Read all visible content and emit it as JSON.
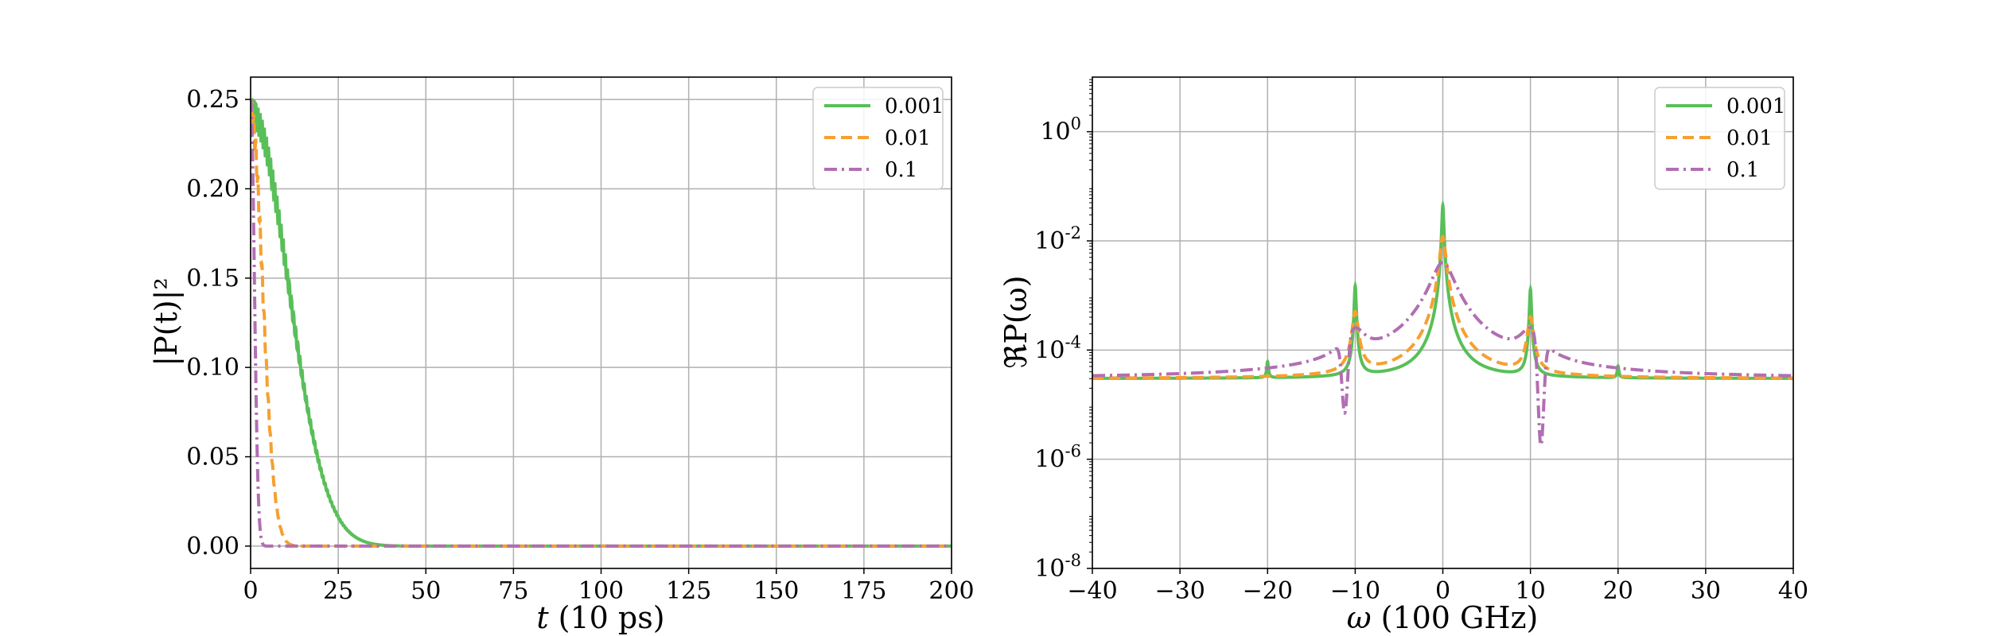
{
  "colors": {
    "s0": "#59bf59",
    "s1": "#f5a030",
    "s2": "#b26eb2"
  },
  "chart_data": [
    {
      "type": "line",
      "xlabel_var": "t",
      "xlabel_unit": "(10 ps)",
      "ylabel": "|P(t)|²",
      "xlim": [
        0,
        200
      ],
      "ylim": [
        -0.0125,
        0.2625
      ],
      "xticks": [
        0,
        25,
        50,
        75,
        100,
        125,
        150,
        175,
        200
      ],
      "xtick_labels": [
        "0",
        "25",
        "50",
        "75",
        "100",
        "125",
        "150",
        "175",
        "200"
      ],
      "yticks": [
        0.0,
        0.05,
        0.1,
        0.15,
        0.2,
        0.25
      ],
      "ytick_labels": [
        "0.00",
        "0.05",
        "0.10",
        "0.15",
        "0.20",
        "0.25"
      ],
      "grid": true,
      "legend": "top-right",
      "series": [
        {
          "name": "0.001",
          "style": "solid",
          "color_key": "s0",
          "decay_scale": 15.2,
          "osc_amp": 0.02
        },
        {
          "name": "0.01",
          "style": "dashed",
          "color_key": "s1",
          "decay_scale": 4.8,
          "osc_amp": 0.02
        },
        {
          "name": "0.1",
          "style": "dashdot",
          "color_key": "s2",
          "decay_scale": 1.5,
          "osc_amp": 0.0
        }
      ]
    },
    {
      "type": "line",
      "xlabel_var": "ω",
      "xlabel_unit": "(100 GHz)",
      "ylabel": "ℜP(ω)",
      "yscale": "log",
      "xlim": [
        -40,
        40
      ],
      "ylim_log10": [
        -8,
        1
      ],
      "xticks": [
        -40,
        -30,
        -20,
        -10,
        0,
        10,
        20,
        30,
        40
      ],
      "xtick_labels": [
        "−40",
        "−30",
        "−20",
        "−10",
        "0",
        "10",
        "20",
        "30",
        "40"
      ],
      "yticks_exp": [
        0,
        -2,
        -4,
        -6,
        -8
      ],
      "ytick_base": "10",
      "ytick_exponents": [
        "0",
        "-2",
        "-4",
        "-6",
        "-8"
      ],
      "grid": true,
      "legend": "top-right",
      "baseline": 3e-05,
      "series": [
        {
          "name": "0.001",
          "style": "solid",
          "color_key": "s0",
          "peaks": [
            {
              "x": 0,
              "value": 0.045,
              "width": 0.1
            },
            {
              "x": -10,
              "value": 0.0015,
              "width": 0.1
            },
            {
              "x": 10,
              "value": 0.0013,
              "width": 0.1
            },
            {
              "x": -20,
              "value": 6e-05,
              "width": 0.1
            },
            {
              "x": 20,
              "value": 5e-05,
              "width": 0.1
            }
          ]
        },
        {
          "name": "0.01",
          "style": "dashed",
          "color_key": "s1",
          "peaks": [
            {
              "x": 0,
              "value": 0.012,
              "width": 0.3
            },
            {
              "x": -10,
              "value": 0.0005,
              "width": 0.3
            },
            {
              "x": 10,
              "value": 0.0004,
              "width": 0.3
            }
          ]
        },
        {
          "name": "0.1",
          "style": "dashdot",
          "color_key": "s2",
          "peaks": [
            {
              "x": 0,
              "value": 0.004,
              "width": 1.2
            },
            {
              "x": -10,
              "value": 0.0002,
              "width": 1.2
            },
            {
              "x": 10,
              "value": 0.0002,
              "width": 1.2
            }
          ],
          "dips": [
            {
              "x": -11.2,
              "value": 7e-06
            },
            {
              "x": 11.2,
              "value": 1.8e-06
            }
          ]
        }
      ]
    }
  ]
}
